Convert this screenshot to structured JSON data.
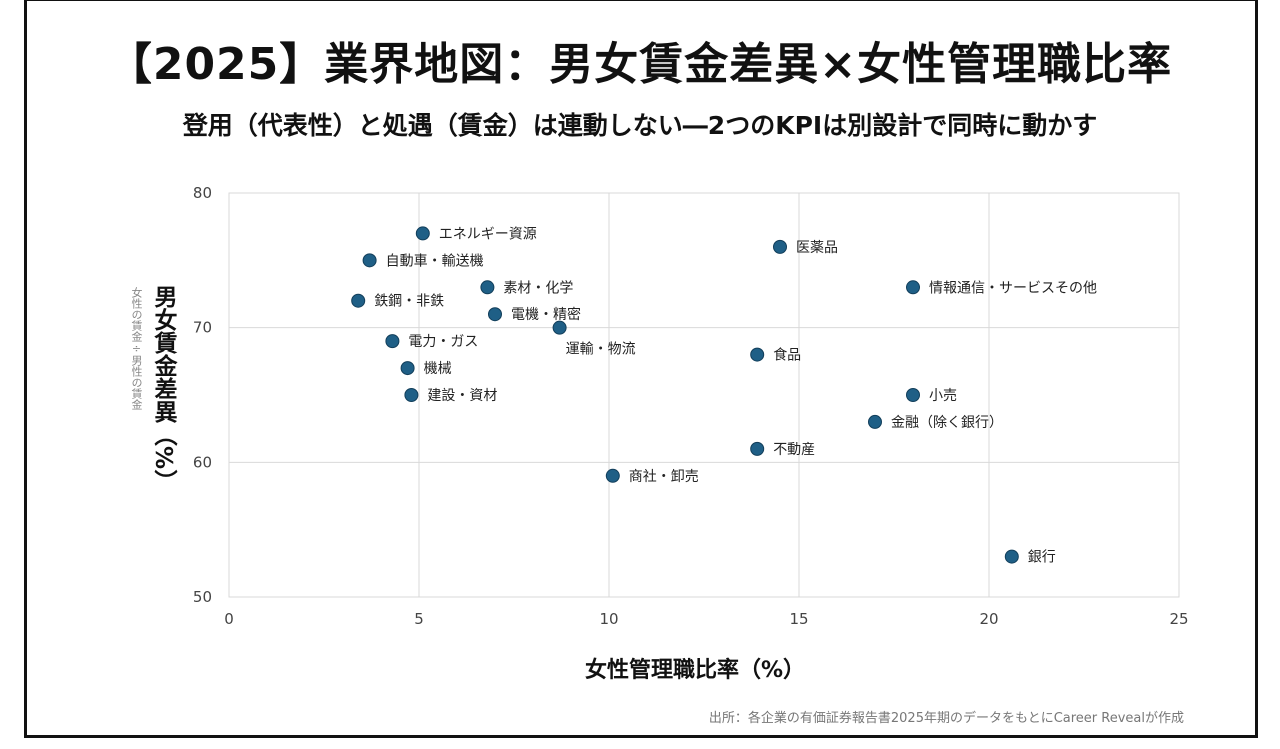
{
  "chart_data": {
    "type": "scatter",
    "title": "【2025】業界地図：男女賃金差異×女性管理職比率",
    "subtitle": "登用（代表性）と処遇（賃金）は連動しない―2つのKPIは別設計で同時に動かす",
    "xlabel": "女性管理職比率（%）",
    "ylabel": "男女賃金差異（%）",
    "ylabel_note": "女性の賃金÷男性の賃金",
    "source": "出所：各企業の有価証券報告書2025年期のデータをもとにCareer Revealが作成",
    "xlim": [
      0,
      25
    ],
    "ylim": [
      50,
      80
    ],
    "xticks": [
      0,
      5,
      10,
      15,
      20,
      25
    ],
    "yticks": [
      50,
      60,
      70,
      80
    ],
    "grid": true,
    "marker_color": "#1f5f86",
    "points": [
      {
        "label": "エネルギー資源",
        "x": 5.1,
        "y": 77
      },
      {
        "label": "自動車・輸送機",
        "x": 3.7,
        "y": 75
      },
      {
        "label": "素材・化学",
        "x": 6.8,
        "y": 73
      },
      {
        "label": "鉄鋼・非鉄",
        "x": 3.4,
        "y": 72
      },
      {
        "label": "電機・精密",
        "x": 7.0,
        "y": 71
      },
      {
        "label": "運輸・物流",
        "x": 8.7,
        "y": 70
      },
      {
        "label": "電力・ガス",
        "x": 4.3,
        "y": 69
      },
      {
        "label": "機械",
        "x": 4.7,
        "y": 67
      },
      {
        "label": "建設・資材",
        "x": 4.8,
        "y": 65
      },
      {
        "label": "医薬品",
        "x": 14.5,
        "y": 76
      },
      {
        "label": "情報通信・サービスその他",
        "x": 18.0,
        "y": 73
      },
      {
        "label": "食品",
        "x": 13.9,
        "y": 68
      },
      {
        "label": "小売",
        "x": 18.0,
        "y": 65
      },
      {
        "label": "金融（除く銀行）",
        "x": 17.0,
        "y": 63
      },
      {
        "label": "不動産",
        "x": 13.9,
        "y": 61
      },
      {
        "label": "商社・卸売",
        "x": 10.1,
        "y": 59
      },
      {
        "label": "銀行",
        "x": 20.6,
        "y": 53
      }
    ]
  }
}
